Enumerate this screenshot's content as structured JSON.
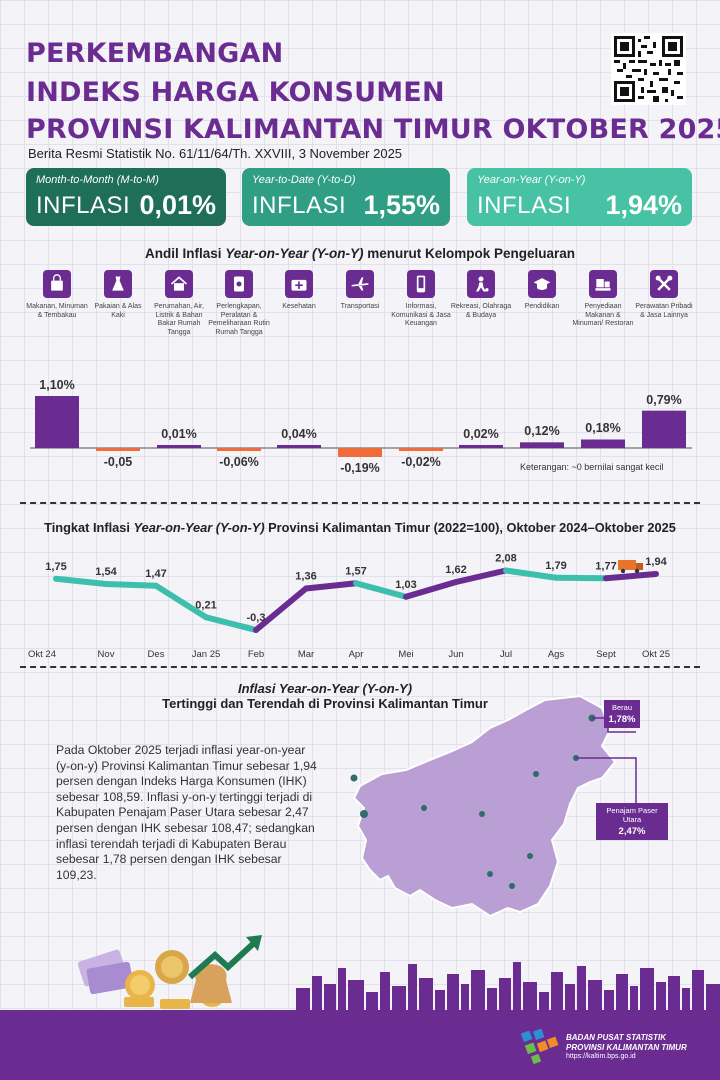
{
  "header": {
    "title_lines": [
      "PERKEMBANGAN",
      "INDEKS HARGA KONSUMEN",
      "PROVINSI KALIMANTAN TIMUR OKTOBER 2025"
    ],
    "subtitle": "Berita Resmi Statistik No. 61/11/64/Th. XXVIII, 3 November 2025"
  },
  "cards": [
    {
      "period": "Month-to-Month (M-to-M)",
      "word": "INFLASI",
      "value": "0,01%",
      "color": "#1e6e58"
    },
    {
      "period": "Year-to-Date (Y-to-D)",
      "word": "INFLASI",
      "value": "1,55%",
      "color": "#2f9e84"
    },
    {
      "period": "Year-on-Year (Y-on-Y)",
      "word": "INFLASI",
      "value": "1,94%",
      "color": "#47c2a4"
    }
  ],
  "andil": {
    "title_pre": "Andil Inflasi ",
    "title_em": "Year-on-Year (Y-on-Y)",
    "title_post": " menurut Kelompok Pengeluaran",
    "note": "Keterangan: ~0 bernilai sangat kecil",
    "groups": [
      {
        "label": "Makanan, Minuman & Tembakau",
        "icon": "shopping-bag-icon",
        "value": 1.1,
        "display": "1,10%"
      },
      {
        "label": "Pakaian & Alas Kaki",
        "icon": "dress-icon",
        "value": -0.05,
        "display": "-0,05"
      },
      {
        "label": "Perumahan, Air, Listrik & Bahan Bakar Rumah Tangga",
        "icon": "house-icon",
        "value": 0.01,
        "display": "0,01%"
      },
      {
        "label": "Perlengkapan, Peralatan & Pemeliharaan Rutin Rumah Tangga",
        "icon": "appliance-icon",
        "value": -0.06,
        "display": "-0,06%"
      },
      {
        "label": "Kesehatan",
        "icon": "medical-kit-icon",
        "value": 0.04,
        "display": "0,04%"
      },
      {
        "label": "Transportasi",
        "icon": "airplane-icon",
        "value": -0.19,
        "display": "-0,19%"
      },
      {
        "label": "Informasi, Komunikasi & Jasa Keuangan",
        "icon": "phone-icon",
        "value": -0.02,
        "display": "-0,02%"
      },
      {
        "label": "Rekreasi, Olahraga & Budaya",
        "icon": "soccer-icon",
        "value": 0.02,
        "display": "0,02%"
      },
      {
        "label": "Pendidikan",
        "icon": "graduation-cap-icon",
        "value": 0.12,
        "display": "0,12%"
      },
      {
        "label": "Penyediaan Makanan & Minuman/ Restoran",
        "icon": "food-tray-icon",
        "value": 0.18,
        "display": "0,18%"
      },
      {
        "label": "Perawatan Pribadi & Jasa Lainnya",
        "icon": "tools-icon",
        "value": 0.79,
        "display": "0,79%"
      }
    ]
  },
  "chart_data": {
    "type": "line",
    "title": "Tingkat Inflasi Year-on-Year (Y-on-Y) Provinsi Kalimantan Timur (2022=100), Oktober 2024–Oktober 2025",
    "title_pre": "Tingkat Inflasi ",
    "title_em": "Year-on-Year (Y-on-Y)",
    "title_post": " Provinsi Kalimantan Timur (2022=100), Oktober 2024–Oktober 2025",
    "categories": [
      "Okt 24",
      "Nov",
      "Des",
      "Jan 25",
      "Feb",
      "Mar",
      "Apr",
      "Mei",
      "Jun",
      "Jul",
      "Ags",
      "Sept",
      "Okt 25"
    ],
    "values": [
      1.75,
      1.54,
      1.47,
      0.21,
      -0.3,
      1.36,
      1.57,
      1.03,
      1.62,
      2.08,
      1.79,
      1.77,
      1.94
    ],
    "labels": [
      "1,75",
      "1,54",
      "1,47",
      "0,21",
      "-0,3",
      "1,36",
      "1,57",
      "1,03",
      "1,62",
      "2,08",
      "1,79",
      "1,77",
      "1,94"
    ],
    "colors": {
      "up": "#6a2c91",
      "down": "#3dbfad"
    },
    "ylim": [
      -0.5,
      2.3
    ]
  },
  "map": {
    "title_em": "Inflasi Year-on-Year (Y-on-Y)",
    "title_line2": "Tertinggi dan Terendah di Provinsi Kalimantan Timur",
    "paragraph": "Pada Oktober 2025 terjadi inflasi year-on-year (y-on-y) Provinsi Kalimantan Timur sebesar 1,94 persen dengan Indeks Harga Konsumen (IHK) sebesar 108,59. Inflasi y-on-y tertinggi terjadi di Kabupaten Penajam Paser Utara sebesar 2,47 persen dengan IHK sebesar 108,47; sedangkan inflasi terendah terjadi di Kabupaten Berau sebesar 1,78 persen dengan IHK sebesar 109,23.",
    "callouts": [
      {
        "name": "Berau",
        "value": "1,78%"
      },
      {
        "name": "Penajam Paser Utara",
        "value": "2,47%"
      }
    ]
  },
  "footer": {
    "org_line1": "BADAN PUSAT STATISTIK",
    "org_line2": "PROVINSI KALIMANTAN TIMUR",
    "url": "https://kaltim.bps.go.id"
  }
}
